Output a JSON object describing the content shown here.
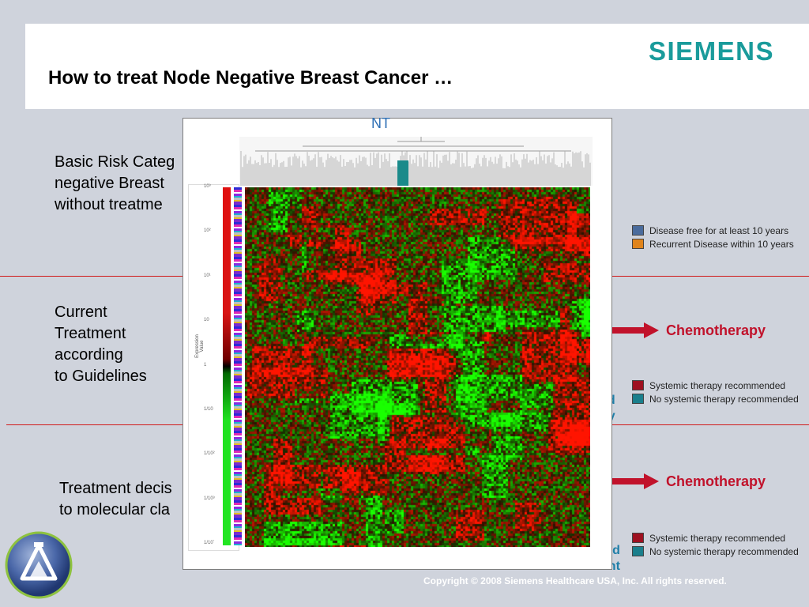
{
  "header": {
    "title": "How to treat Node Negative Breast Cancer …",
    "brand": "SIEMENS"
  },
  "left_text": [
    "Basic Risk Categ\nnegative Breast\nwithout  treatme",
    "Current\nTreatment\naccording\nto Guidelines",
    "Treatment decis\nto molecular cla"
  ],
  "legend_outcome": [
    {
      "label": "Disease free for at least 10 years",
      "color": "#4a6b9c"
    },
    {
      "label": "Recurrent Disease within 10 years",
      "color": "#e0841c"
    }
  ],
  "chemo_label": "Chemotherapy",
  "legend_therapy": [
    {
      "label": "Systemic therapy recommended",
      "color": "#9e1020"
    },
    {
      "label": "No systemic therapy recommended",
      "color": "#1a7f8c"
    }
  ],
  "teal_fragments": [
    "ed\npy",
    "ed\ntreatment"
  ],
  "heatmap": {
    "nt_label": "NT",
    "axis_title": "Expression Value",
    "ticks": [
      "10³",
      "10²",
      "10¹",
      "10",
      "1",
      "1/10",
      "1/10²",
      "1/10³",
      "1/10´"
    ]
  },
  "footer": {
    "copyright": "Copyright © 2008 Siemens Healthcare USA, Inc. All rights reserved."
  }
}
